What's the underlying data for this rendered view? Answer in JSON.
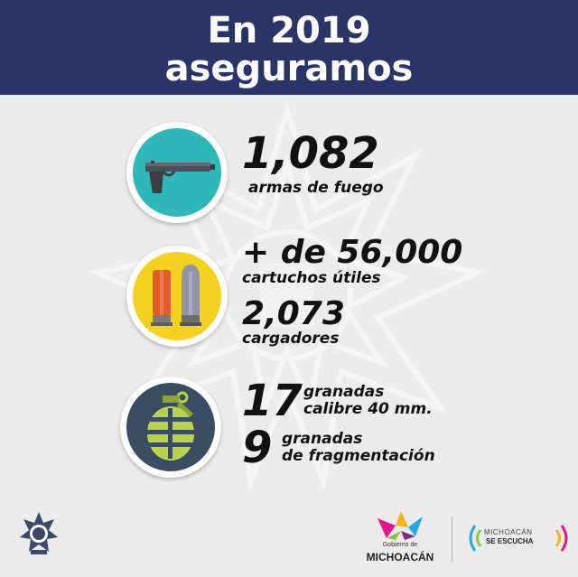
{
  "header": {
    "line1": "En 2019",
    "line2": "aseguramos",
    "background": "#2b3467"
  },
  "items": [
    {
      "icon": "pistol-icon",
      "color": "#2eb8ba",
      "number": "1,082",
      "label": "armas de fuego"
    },
    {
      "icon": "cartridges-icon",
      "color": "#f4d21f",
      "number": "+ de 56,000",
      "label": "cartuchos útiles"
    },
    {
      "number": "2,073",
      "label": "cargadores"
    },
    {
      "icon": "grenade-icon",
      "color": "#3a4d63",
      "number": "17",
      "label_line1": "granadas",
      "label_line2": "calibre 40 mm."
    },
    {
      "number": "9",
      "label_line1": "granadas",
      "label_line2": "de fragmentación"
    }
  ],
  "footer": {
    "gobierno_small": "Gobierno de",
    "gobierno_big": "MICHOACÁN",
    "escucha_line1": "MICHOACÁN",
    "escucha_line2": "SE ESCUCHA"
  }
}
